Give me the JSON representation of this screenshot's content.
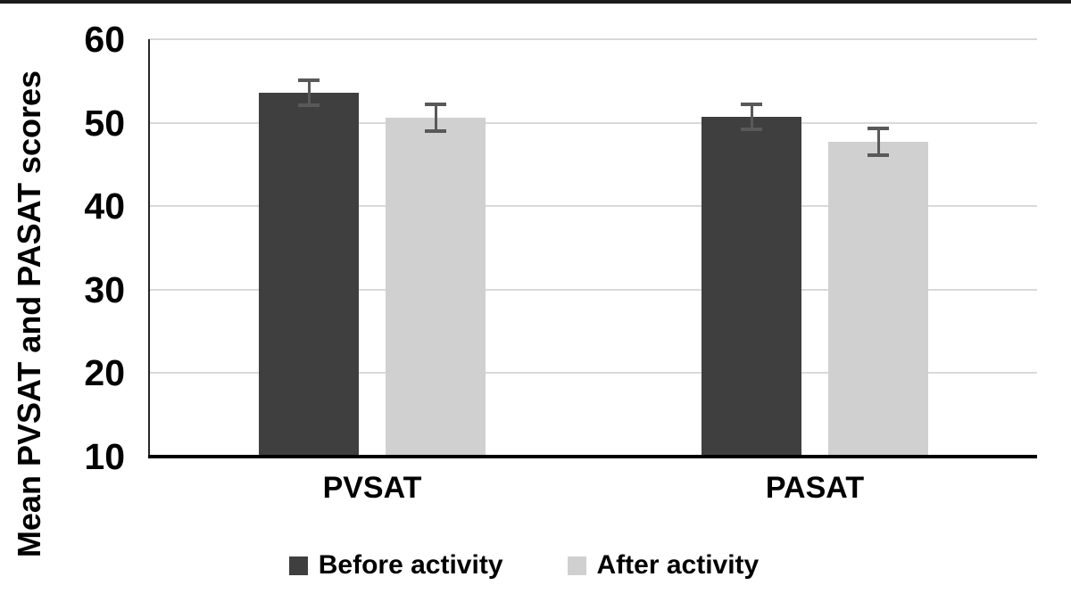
{
  "chart_data": {
    "type": "bar",
    "title": "",
    "ylabel": "Mean PVSAT and PASAT scores",
    "xlabel": "",
    "categories": [
      "PVSAT",
      "PASAT"
    ],
    "series": [
      {
        "name": "Before activity",
        "color": "#3f3f3f",
        "values": [
          53.6,
          50.7
        ],
        "errors": [
          1.5,
          1.5
        ]
      },
      {
        "name": "After activity",
        "color": "#d1d0d0",
        "values": [
          50.6,
          47.7
        ],
        "errors": [
          1.6,
          1.6
        ]
      }
    ],
    "ylim": [
      10,
      60
    ],
    "yticks": [
      10,
      20,
      30,
      40,
      50,
      60
    ],
    "grid": "horizontal",
    "legend_position": "bottom",
    "error_bars": true,
    "error_bar_color": "#595959",
    "gridline_color": "#d9d9d9",
    "axis_color": "#000000",
    "y_axis_line_color": "#262626",
    "top_border_color": "#1a1a1a"
  }
}
